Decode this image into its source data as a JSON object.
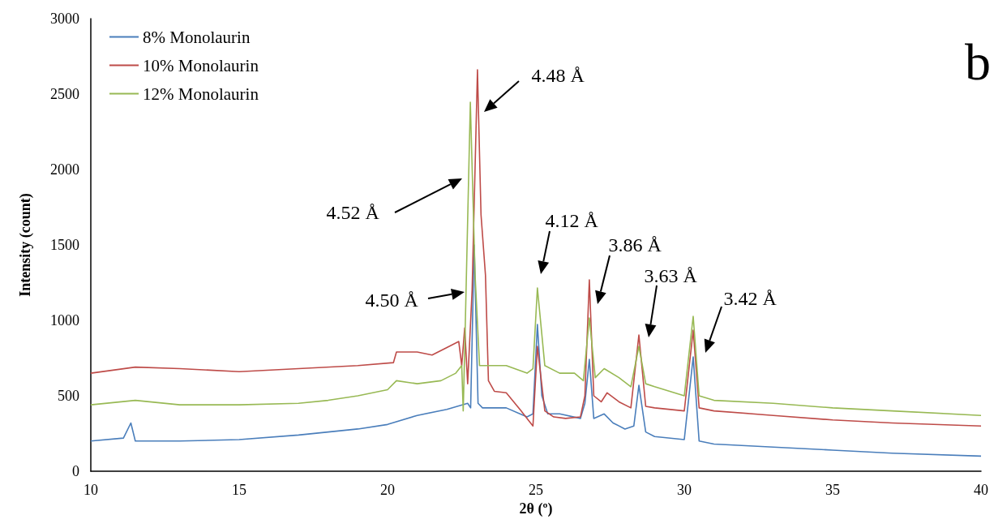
{
  "chart_data": {
    "type": "line",
    "xlabel": "2θ (º)",
    "ylabel": "Intensity (count)",
    "xlim": [
      10,
      40
    ],
    "xticks": [
      10,
      15,
      20,
      25,
      30,
      35,
      40
    ],
    "ylim": [
      0,
      3000
    ],
    "yticks": [
      0,
      500,
      1000,
      1500,
      2000,
      2500,
      3000
    ],
    "grid": false,
    "legend": "top left",
    "marker": "none",
    "line_style": "solid",
    "series": [
      {
        "name": "8% Monolaurin",
        "color": "#4a7ebb",
        "x": [
          10,
          11.1,
          11.35,
          11.5,
          13,
          15,
          17,
          19,
          20,
          21,
          22,
          22.7,
          22.8,
          22.92,
          23.05,
          23.2,
          24,
          24.7,
          24.9,
          25.05,
          25.2,
          25.4,
          25.8,
          26.5,
          26.65,
          26.8,
          26.95,
          27.3,
          27.6,
          28,
          28.3,
          28.47,
          28.7,
          29,
          30,
          30.3,
          30.5,
          31,
          33,
          35,
          37,
          40
        ],
        "values": [
          200,
          220,
          320,
          200,
          200,
          210,
          240,
          280,
          310,
          370,
          410,
          450,
          420,
          1500,
          450,
          420,
          420,
          360,
          380,
          973,
          500,
          380,
          380,
          350,
          450,
          742,
          350,
          380,
          320,
          280,
          300,
          570,
          260,
          230,
          210,
          758,
          200,
          180,
          160,
          140,
          120,
          100
        ]
      },
      {
        "name": "10% Monolaurin",
        "color": "#be4b48",
        "x": [
          10,
          11.5,
          13,
          15,
          17,
          19,
          20.2,
          20.3,
          21,
          21.5,
          22,
          22.4,
          22.5,
          22.6,
          22.7,
          22.85,
          23.03,
          23.15,
          23.3,
          23.4,
          23.6,
          24,
          24.5,
          24.9,
          25.05,
          25.3,
          25.6,
          26,
          26.5,
          26.65,
          26.8,
          26.95,
          27.2,
          27.4,
          27.8,
          28.2,
          28.47,
          28.7,
          29,
          30,
          30.3,
          30.5,
          31,
          33,
          35,
          37,
          40
        ],
        "values": [
          650,
          690,
          680,
          660,
          680,
          700,
          720,
          790,
          790,
          770,
          820,
          860,
          700,
          950,
          580,
          1200,
          2661,
          1700,
          1300,
          600,
          530,
          520,
          400,
          300,
          828,
          400,
          360,
          350,
          360,
          500,
          1269,
          500,
          460,
          520,
          460,
          420,
          903,
          430,
          420,
          400,
          935,
          420,
          400,
          370,
          340,
          320,
          300
        ]
      },
      {
        "name": "12% Monolaurin",
        "color": "#98b954",
        "x": [
          10,
          11.5,
          13,
          15,
          17,
          18,
          19,
          20,
          20.3,
          21,
          21.8,
          22.3,
          22.5,
          22.55,
          22.6,
          22.79,
          22.95,
          23.1,
          24,
          24.7,
          24.9,
          25.05,
          25.3,
          25.8,
          26.3,
          26.6,
          26.8,
          27,
          27.3,
          27.8,
          28.2,
          28.47,
          28.7,
          29,
          30,
          30.3,
          30.5,
          31,
          33,
          35,
          37,
          40
        ],
        "values": [
          440,
          470,
          440,
          440,
          450,
          470,
          500,
          540,
          600,
          580,
          600,
          650,
          700,
          400,
          800,
          2446,
          1300,
          700,
          700,
          650,
          680,
          1215,
          700,
          650,
          650,
          600,
          1016,
          620,
          680,
          620,
          560,
          828,
          580,
          560,
          500,
          1027,
          500,
          470,
          450,
          420,
          400,
          370
        ]
      }
    ],
    "annotations": [
      "4.48 Å",
      "4.52 Å",
      "4.50 Å",
      "4.12 Å",
      "3.86 Å",
      "3.63 Å",
      "3.42 Å",
      "b"
    ]
  }
}
